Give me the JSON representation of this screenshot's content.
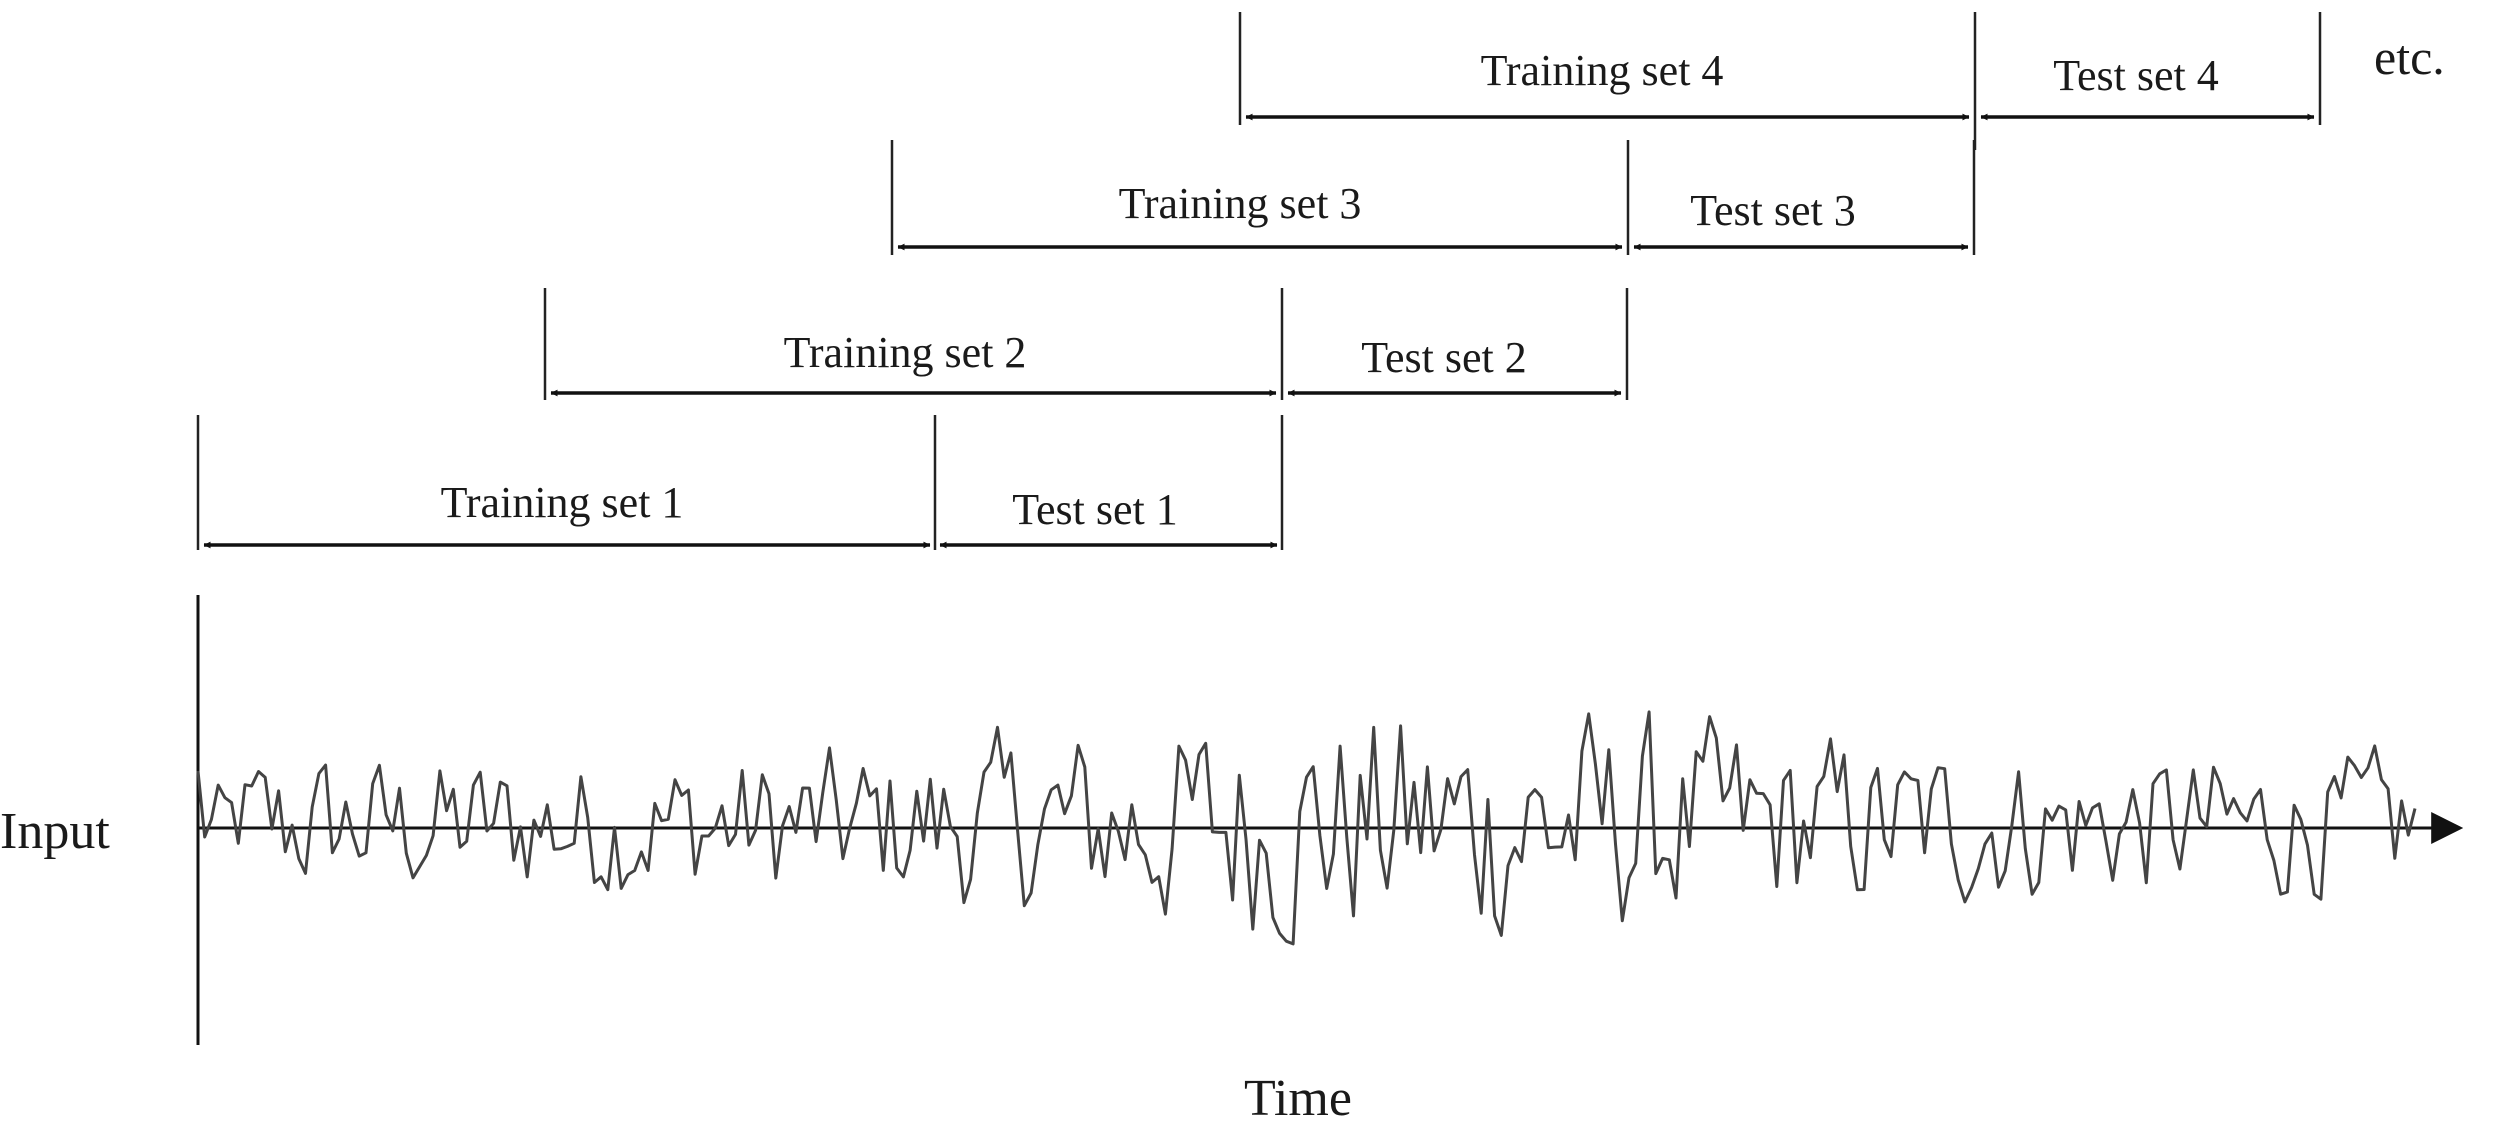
{
  "intervals": [
    {
      "label": "Training set 1",
      "kind": "training"
    },
    {
      "label": "Test set 1",
      "kind": "test"
    },
    {
      "label": "Training set 2",
      "kind": "training"
    },
    {
      "label": "Test set 2",
      "kind": "test"
    },
    {
      "label": "Training set 3",
      "kind": "training"
    },
    {
      "label": "Test set 3",
      "kind": "test"
    },
    {
      "label": "Training set 4",
      "kind": "training"
    },
    {
      "label": "Test set 4",
      "kind": "test"
    }
  ],
  "etc_label": "etc.",
  "axis": {
    "y_label": "Input",
    "x_label": "Time"
  }
}
